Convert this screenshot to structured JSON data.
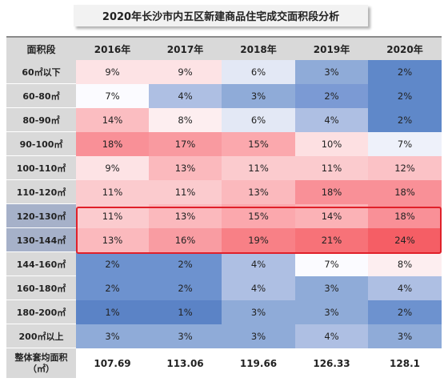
{
  "title": "2020年长沙市内五区新建商品住宅成交面积段分析",
  "chart_data": {
    "type": "table",
    "columns": [
      "面积段",
      "2016年",
      "2017年",
      "2018年",
      "2019年",
      "2020年"
    ],
    "rows": [
      {
        "label": "60㎡以下",
        "values": [
          "9%",
          "9%",
          "6%",
          "3%",
          "2%"
        ]
      },
      {
        "label": "60-80㎡",
        "values": [
          "7%",
          "4%",
          "3%",
          "2%",
          "2%"
        ]
      },
      {
        "label": "80-90㎡",
        "values": [
          "14%",
          "8%",
          "6%",
          "4%",
          "2%"
        ]
      },
      {
        "label": "90-100㎡",
        "values": [
          "18%",
          "17%",
          "15%",
          "10%",
          "7%"
        ]
      },
      {
        "label": "100-110㎡",
        "values": [
          "9%",
          "13%",
          "11%",
          "11%",
          "12%"
        ]
      },
      {
        "label": "110-120㎡",
        "values": [
          "11%",
          "11%",
          "13%",
          "18%",
          "18%"
        ]
      },
      {
        "label": "120-130㎡",
        "values": [
          "11%",
          "13%",
          "15%",
          "14%",
          "18%"
        ]
      },
      {
        "label": "130-144㎡",
        "values": [
          "13%",
          "16%",
          "19%",
          "21%",
          "24%"
        ]
      },
      {
        "label": "144-160㎡",
        "values": [
          "2%",
          "2%",
          "4%",
          "7%",
          "8%"
        ]
      },
      {
        "label": "160-180㎡",
        "values": [
          "2%",
          "2%",
          "4%",
          "3%",
          "4%"
        ]
      },
      {
        "label": "180-200㎡",
        "values": [
          "1%",
          "1%",
          "3%",
          "3%",
          "2%"
        ]
      },
      {
        "label": "200㎡以上",
        "values": [
          "3%",
          "3%",
          "3%",
          "4%",
          "3%"
        ]
      }
    ],
    "summary": {
      "label_line1": "整体套均面积",
      "label_line2": "（㎡）",
      "values": [
        "107.69",
        "113.06",
        "119.66",
        "126.33",
        "128.1"
      ]
    },
    "highlighted_rows": [
      "120-130㎡",
      "130-144㎡"
    ],
    "colors": {
      "header_bg": "#d9d9d9",
      "label_bg": "#d9d9d9",
      "highlight_label_bg": "#a6b1c9",
      "highlight_border": "#e0202a",
      "cell_colors": [
        [
          "#fde3e5",
          "#fde3e5",
          "#e3e8f5",
          "#8fabd8",
          "#5f88c9"
        ],
        [
          "#fbfbff",
          "#aebfe3",
          "#8fabd8",
          "#7b9ad4",
          "#5f88c9"
        ],
        [
          "#fbbdc1",
          "#fdeef0",
          "#e3e8f5",
          "#aebfe3",
          "#5f88c9"
        ],
        [
          "#f99097",
          "#f99aa0",
          "#fba8ad",
          "#fde0e2",
          "#eef1fa"
        ],
        [
          "#fde3e5",
          "#fbb9bd",
          "#fbcbce",
          "#fbcbce",
          "#fbc2c6"
        ],
        [
          "#fbcbce",
          "#fbcbce",
          "#fbb9bd",
          "#f99097",
          "#f99097"
        ],
        [
          "#fbcbce",
          "#fbb9bd",
          "#fba8ad",
          "#fbb2b6",
          "#f99097"
        ],
        [
          "#fbb9bd",
          "#f99ca2",
          "#f88086",
          "#f77278",
          "#f55e65"
        ],
        [
          "#6d92cf",
          "#6d92cf",
          "#aebfe3",
          "#fbfbff",
          "#fdeef0"
        ],
        [
          "#6d92cf",
          "#6d92cf",
          "#aebfe3",
          "#8fabd8",
          "#aebfe3"
        ],
        [
          "#5b83c6",
          "#5b83c6",
          "#8fabd8",
          "#8fabd8",
          "#6d92cf"
        ],
        [
          "#8fabd8",
          "#8fabd8",
          "#8fabd8",
          "#aebfe3",
          "#8fabd8"
        ]
      ]
    }
  }
}
